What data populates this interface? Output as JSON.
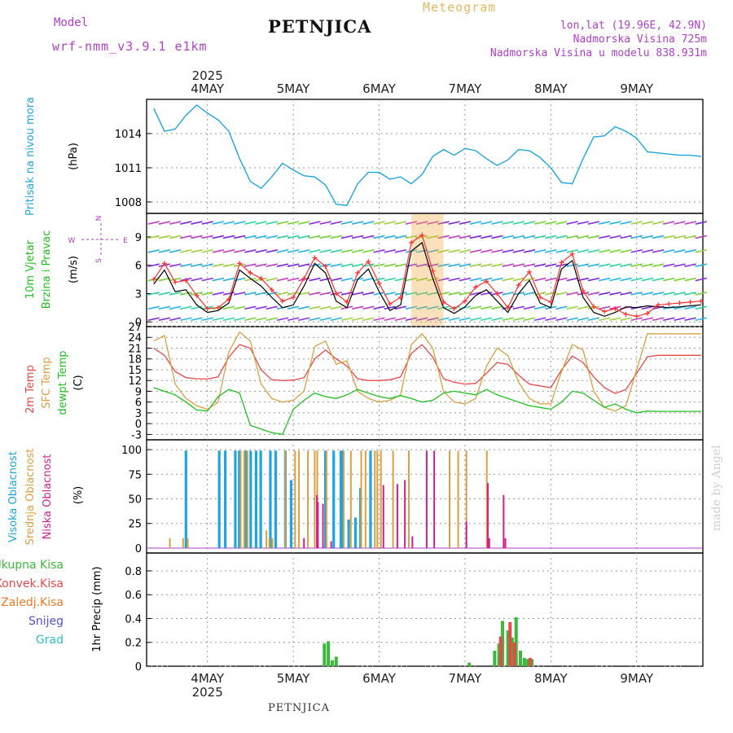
{
  "header": {
    "title": "PETNJICA",
    "meteogram": "Meteogram",
    "model_label": "Model",
    "model_value": "wrf-nmm_v3.9.1 e1km",
    "lonlat": "lon,lat (19.96E, 42.9N)",
    "elevation": "Nadmorska Visina 725m",
    "model_elevation": "Nadmorska Visina u modelu 838.931m",
    "footer": "PETNJICA",
    "credit": "made by Angel",
    "year": "2025"
  },
  "chart_data": [
    {
      "type": "line",
      "panel": "pressure",
      "ylabel": "Pritisak na nivou mora",
      "unit": "(hPa)",
      "yticks": [
        1008,
        1011,
        1014
      ],
      "ylim": [
        1007,
        1017
      ],
      "x_unit": "hours from 4 May 00 UTC",
      "x": [
        -15,
        -12,
        -9,
        -6,
        -3,
        0,
        3,
        6,
        9,
        12,
        15,
        18,
        21,
        24,
        27,
        30,
        33,
        36,
        39,
        42,
        45,
        48,
        51,
        54,
        57,
        60,
        63,
        66,
        69,
        72,
        75,
        78,
        81,
        84,
        87,
        90,
        93,
        96,
        99,
        102,
        105,
        108,
        111,
        114,
        117,
        120,
        123,
        126,
        129,
        132,
        135,
        138
      ],
      "series": [
        {
          "color": "#1ea5e0",
          "values": [
            1016.2,
            1014.2,
            1014.4,
            1015.6,
            1016.5,
            1015.8,
            1015.2,
            1014.2,
            1011.8,
            1009.8,
            1009.2,
            1010.2,
            1011.4,
            1010.8,
            1010.3,
            1010.2,
            1009.5,
            1007.8,
            1007.7,
            1009.6,
            1010.6,
            1010.6,
            1010.0,
            1010.2,
            1009.6,
            1010.4,
            1012.0,
            1012.6,
            1012.1,
            1012.7,
            1012.5,
            1011.8,
            1011.2,
            1011.7,
            1012.6,
            1012.5,
            1011.9,
            1011.0,
            1009.7,
            1009.6,
            1011.8,
            1013.7,
            1013.8,
            1014.6,
            1014.2,
            1013.6,
            1012.4,
            1012.3,
            1012.2,
            1012.1,
            1012.1,
            1012.0
          ]
        }
      ]
    },
    {
      "type": "line",
      "panel": "wind",
      "ylabel": [
        "10m Vjetar",
        "Brzina i Pravac"
      ],
      "unit": "(m/s)",
      "compass": {
        "n": "N",
        "s": "S",
        "w": "W",
        "e": "E"
      },
      "yticks": [
        0,
        3,
        6,
        9
      ],
      "ylim": [
        -0.5,
        11.5
      ],
      "x_unit": "hours from 4 May 00 UTC",
      "x": [
        -15,
        -12,
        -9,
        -6,
        -3,
        0,
        3,
        6,
        9,
        12,
        15,
        18,
        21,
        24,
        27,
        30,
        33,
        36,
        39,
        42,
        45,
        48,
        51,
        54,
        57,
        60,
        63,
        66,
        69,
        72,
        75,
        78,
        81,
        84,
        87,
        90,
        93,
        96,
        99,
        102,
        105,
        108,
        111,
        114,
        117,
        120,
        123,
        126,
        129,
        132,
        135,
        138
      ],
      "series": [
        {
          "name": "speed",
          "color": "#000000",
          "values": [
            4.0,
            5.5,
            3.2,
            3.4,
            1.8,
            1.0,
            1.2,
            2.0,
            5.5,
            4.6,
            3.8,
            2.6,
            1.5,
            1.8,
            3.8,
            6.2,
            5.2,
            2.2,
            1.5,
            4.5,
            5.6,
            3.2,
            1.2,
            1.8,
            7.5,
            8.4,
            4.6,
            1.5,
            0.9,
            1.6,
            2.8,
            3.4,
            2.2,
            1.0,
            3.0,
            4.4,
            2.0,
            1.5,
            5.6,
            6.5,
            2.6,
            1.0,
            0.6,
            1.0,
            1.6,
            1.5,
            1.7,
            1.6,
            1.5,
            1.6,
            1.7,
            1.8
          ]
        },
        {
          "name": "gust",
          "color": "#ff3030",
          "values": [
            4.5,
            6.2,
            4.2,
            4.4,
            2.8,
            1.4,
            1.5,
            2.4,
            6.2,
            5.2,
            4.6,
            3.4,
            2.2,
            2.6,
            4.6,
            6.8,
            5.9,
            3.0,
            2.1,
            5.2,
            6.4,
            4.1,
            1.9,
            2.6,
            8.4,
            9.2,
            5.4,
            2.1,
            1.4,
            2.2,
            3.7,
            4.3,
            3.0,
            1.5,
            3.9,
            5.3,
            2.6,
            2.1,
            6.3,
            7.2,
            3.3,
            1.6,
            1.1,
            1.4,
            0.8,
            0.6,
            0.9,
            1.8,
            1.9,
            2.0,
            2.1,
            2.2
          ]
        }
      ]
    },
    {
      "type": "line",
      "panel": "temperature",
      "ylabel": [
        "2m Temp",
        "SFC Temp",
        "dewpt Temp"
      ],
      "ylabel_colors": [
        "#e84848",
        "#d8a040",
        "#20c020"
      ],
      "unit": "(C)",
      "yticks": [
        -3,
        0,
        3,
        6,
        9,
        12,
        15,
        18,
        21,
        24,
        27
      ],
      "ylim": [
        -4.5,
        27
      ],
      "x_unit": "hours from 4 May 00 UTC",
      "x": [
        -15,
        -12,
        -9,
        -6,
        -3,
        0,
        3,
        6,
        9,
        12,
        15,
        18,
        21,
        24,
        27,
        30,
        33,
        36,
        39,
        42,
        45,
        48,
        51,
        54,
        57,
        60,
        63,
        66,
        69,
        72,
        75,
        78,
        81,
        84,
        87,
        90,
        93,
        96,
        99,
        102,
        105,
        108,
        111,
        114,
        117,
        120,
        123,
        126,
        129,
        132,
        135,
        138
      ],
      "series": [
        {
          "name": "2m Temp",
          "color": "#e84848",
          "values": [
            21.0,
            19.0,
            14.5,
            12.8,
            12.5,
            12.4,
            13.0,
            18.5,
            22.0,
            21.0,
            15.0,
            12.2,
            12.0,
            12.1,
            12.8,
            18.0,
            20.5,
            18.0,
            16.0,
            12.5,
            12.0,
            12.0,
            12.2,
            13.0,
            19.5,
            22.0,
            18.5,
            12.5,
            11.5,
            11.0,
            11.2,
            14.0,
            17.0,
            16.5,
            13.5,
            11.0,
            10.5,
            10.0,
            15.0,
            18.8,
            17.0,
            13.0,
            10.0,
            8.4,
            9.5,
            14.0,
            18.6,
            19.0,
            19.0,
            19.0,
            19.0,
            19.0
          ]
        },
        {
          "name": "SFC Temp",
          "color": "#d8a040",
          "values": [
            23.0,
            24.5,
            11.0,
            7.0,
            5.0,
            4.0,
            6.0,
            20.0,
            25.5,
            23.0,
            11.0,
            7.0,
            6.0,
            6.5,
            9.0,
            21.5,
            23.0,
            16.5,
            17.5,
            9.0,
            7.0,
            6.0,
            6.5,
            8.0,
            22.0,
            25.0,
            21.0,
            9.0,
            6.0,
            5.5,
            7.0,
            16.0,
            21.0,
            19.0,
            11.5,
            7.0,
            5.5,
            5.5,
            14.5,
            22.0,
            20.5,
            9.0,
            4.5,
            3.5,
            5.0,
            15.0,
            25.0,
            25.0,
            25.0,
            25.0,
            25.0,
            25.0
          ]
        },
        {
          "name": "dewpt Temp",
          "color": "#20c020",
          "values": [
            10.0,
            9.0,
            8.0,
            6.0,
            3.8,
            3.5,
            7.5,
            9.5,
            8.5,
            -0.5,
            -1.5,
            -2.5,
            -3.0,
            4.0,
            6.5,
            8.5,
            7.5,
            7.0,
            8.0,
            9.5,
            8.5,
            7.5,
            7.0,
            7.8,
            7.0,
            6.0,
            6.5,
            8.5,
            9.0,
            8.5,
            8.0,
            9.5,
            8.0,
            7.0,
            6.0,
            5.0,
            4.5,
            4.0,
            6.0,
            9.0,
            8.5,
            6.5,
            4.5,
            5.5,
            4.0,
            3.0,
            3.5,
            3.4,
            3.4,
            3.4,
            3.4,
            3.4
          ]
        }
      ]
    },
    {
      "type": "bar",
      "panel": "cloud",
      "ylabel": [
        "Visoka Oblacnost",
        "Srednja Oblacnost",
        "Niska Oblacnost"
      ],
      "ylabel_colors": [
        "#1ea5e0",
        "#d8a040",
        "#d02090"
      ],
      "unit": "(%)",
      "yticks": [
        0,
        25,
        50,
        75,
        100
      ],
      "ylim": [
        -5,
        110
      ],
      "x_unit": "hours from 4 May 00 UTC",
      "series": [
        {
          "name": "Visoka Oblacnost",
          "color": "#1ea5e0",
          "x": [
            -6,
            3.3,
            5.0,
            7.8,
            8.9,
            10.7,
            12.1,
            13.6,
            14.9,
            17.6,
            19.1,
            21.8,
            23.4,
            33.0,
            35.3,
            37.3,
            37.8,
            39.5,
            41.4,
            42.8,
            45.6
          ],
          "values": [
            99,
            99,
            99,
            99,
            99,
            99,
            99,
            99,
            99,
            99,
            99,
            99,
            69,
            99,
            99,
            99,
            99,
            29,
            31,
            61,
            99
          ]
        },
        {
          "name": "Srednja Oblacnost",
          "color": "#d8a040",
          "x": [
            -10.5,
            -6.8,
            -5.5,
            9.3,
            10.3,
            11.2,
            16.5,
            17.3,
            18.2,
            21.8,
            24.5,
            25.6,
            28.1,
            30.0,
            30.7,
            33.3,
            38.1,
            40.1,
            43.0,
            44.2,
            46.8,
            47.5,
            48.5,
            51.9,
            56.3,
            67.7,
            70.1,
            72.4,
            78.1
          ],
          "values": [
            10,
            10,
            10,
            99,
            99,
            99,
            18,
            10,
            10,
            99,
            99,
            99,
            99,
            99,
            99,
            99,
            99,
            99,
            99,
            99,
            99,
            99,
            99,
            99,
            99,
            99,
            99,
            99,
            99
          ]
        },
        {
          "name": "Niska Oblacnost",
          "color": "#d02090",
          "x": [
            27.0,
            30.6,
            30.9,
            32.3,
            34.6,
            49.2,
            53.1,
            55.2,
            57.3,
            61.3,
            63.4,
            72.4,
            78.4,
            78.8,
            82.8,
            83.3
          ],
          "values": [
            10,
            54,
            47,
            45,
            7,
            64,
            65,
            69,
            12,
            99,
            99,
            27,
            66,
            10,
            54,
            10
          ]
        }
      ]
    },
    {
      "type": "bar",
      "panel": "precipitation",
      "ylabel": "1hr Precip",
      "unit": "(mm)",
      "legend": [
        {
          "name": "Ukupna Kisa",
          "color": "#3cb83c"
        },
        {
          "name": "Konvek.Kisa",
          "color": "#e84848"
        },
        {
          "name": "Zaledj.Kisa",
          "color": "#f07828"
        },
        {
          "name": "Snijeg",
          "color": "#5050d8"
        },
        {
          "name": "Grad",
          "color": "#2ec0c0"
        }
      ],
      "yticks": [
        0,
        0.2,
        0.4,
        0.6,
        0.8
      ],
      "ylim": [
        0,
        0.95
      ],
      "x_unit": "hours from 4 May 00 UTC",
      "series": [
        {
          "name": "Ukupna Kisa",
          "color": "#3cb83c",
          "x": [
            32.7,
            33.8,
            34.9,
            36.0,
            73.2,
            80.3,
            81.5,
            82.5,
            84.0,
            85.2,
            86.3,
            87.5,
            88.6,
            89.5,
            90.7
          ],
          "values": [
            0.19,
            0.21,
            0.05,
            0.08,
            0.03,
            0.13,
            0.19,
            0.38,
            0.3,
            0.24,
            0.41,
            0.13,
            0.07,
            0.06,
            0.06
          ]
        },
        {
          "name": "Konvek.Kisa",
          "color": "#e84848",
          "x": [
            82.0,
            84.6,
            85.8,
            90.2
          ],
          "values": [
            0.25,
            0.37,
            0.2,
            0.07
          ]
        }
      ]
    }
  ],
  "xaxis": {
    "tick_labels": [
      "4MAY",
      "5MAY",
      "6MAY",
      "7MAY",
      "8MAY",
      "9MAY"
    ],
    "tick_hours": [
      0,
      24,
      48,
      72,
      96,
      120
    ]
  }
}
